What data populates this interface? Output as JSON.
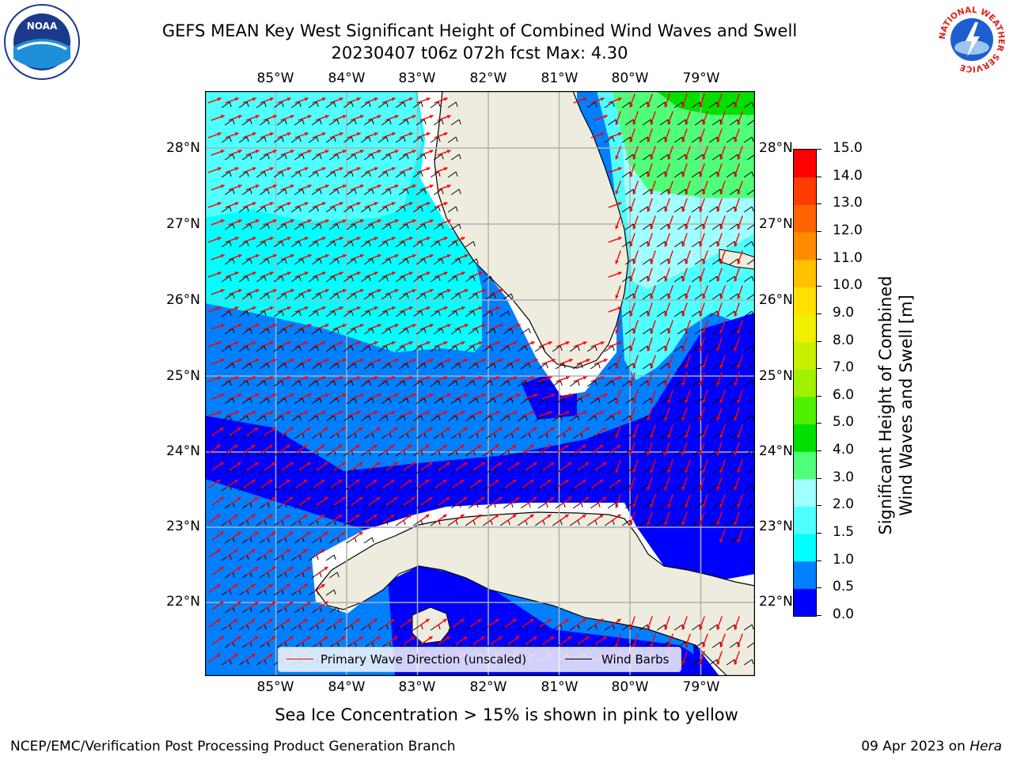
{
  "title": {
    "line1": "GEFS MEAN Key West Significant Height of Combined Wind Waves and Swell",
    "line2": "20230407 t06z 072h fcst   Max: 4.30"
  },
  "logos": {
    "left": {
      "name": "noaa-logo",
      "text": "NOAA"
    },
    "right": {
      "name": "nws-logo",
      "text": "NATIONAL WEATHER SERVICE"
    }
  },
  "map": {
    "lon_labels": [
      "85°W",
      "84°W",
      "83°W",
      "82°W",
      "81°W",
      "80°W",
      "79°W"
    ],
    "lat_labels": [
      "28°N",
      "27°N",
      "26°N",
      "25°N",
      "24°N",
      "23°N",
      "22°N"
    ],
    "colors": {
      "land": "#eeecde",
      "ocean_deep_blue": "#0000ff",
      "ocean_blue": "#007fff",
      "cyan": "#00ffff",
      "light_cyan": "#50ffff",
      "pale_cyan": "#a0ffff",
      "light_green": "#50ff78",
      "green": "#00e000",
      "grid": "#b0b0b0",
      "wave_arrow": "#ff0000",
      "wind_barb": "#000000"
    }
  },
  "legend": {
    "wave": "Primary Wave Direction (unscaled)",
    "wind": "Wind Barbs"
  },
  "colorbar": {
    "label_line1": "Significant Height of Combined",
    "label_line2": "Wind Waves and Swell [m]",
    "ticks": [
      "15.0",
      "14.0",
      "13.0",
      "12.0",
      "11.0",
      "10.0",
      "9.0",
      "8.0",
      "7.0",
      "6.0",
      "5.0",
      "4.0",
      "3.0",
      "2.0",
      "1.5",
      "1.0",
      "0.5",
      "0.0"
    ],
    "levels": [
      {
        "from": "0.0",
        "to": "0.5",
        "color": "#0000ff"
      },
      {
        "from": "0.5",
        "to": "1.0",
        "color": "#007fff"
      },
      {
        "from": "1.0",
        "to": "1.5",
        "color": "#00ffff"
      },
      {
        "from": "1.5",
        "to": "2.0",
        "color": "#50ffff"
      },
      {
        "from": "2.0",
        "to": "3.0",
        "color": "#a0ffff"
      },
      {
        "from": "3.0",
        "to": "4.0",
        "color": "#50ff78"
      },
      {
        "from": "4.0",
        "to": "5.0",
        "color": "#00e000"
      },
      {
        "from": "5.0",
        "to": "6.0",
        "color": "#50f000"
      },
      {
        "from": "6.0",
        "to": "7.0",
        "color": "#a0f000"
      },
      {
        "from": "7.0",
        "to": "8.0",
        "color": "#c8f000"
      },
      {
        "from": "8.0",
        "to": "9.0",
        "color": "#f0f000"
      },
      {
        "from": "9.0",
        "to": "10.0",
        "color": "#ffe000"
      },
      {
        "from": "10.0",
        "to": "11.0",
        "color": "#ffc000"
      },
      {
        "from": "11.0",
        "to": "12.0",
        "color": "#ff8c00"
      },
      {
        "from": "12.0",
        "to": "13.0",
        "color": "#ff6400"
      },
      {
        "from": "13.0",
        "to": "14.0",
        "color": "#ff3c00"
      },
      {
        "from": "14.0",
        "to": "15.0",
        "color": "#ff0000"
      }
    ]
  },
  "note": "Sea Ice Concentration > 15% is shown in pink to yellow",
  "footer": {
    "left": "NCEP/EMC/Verification Post Processing Product Generation Branch",
    "date": "09 Apr 2023 on",
    "host": "Hera"
  }
}
